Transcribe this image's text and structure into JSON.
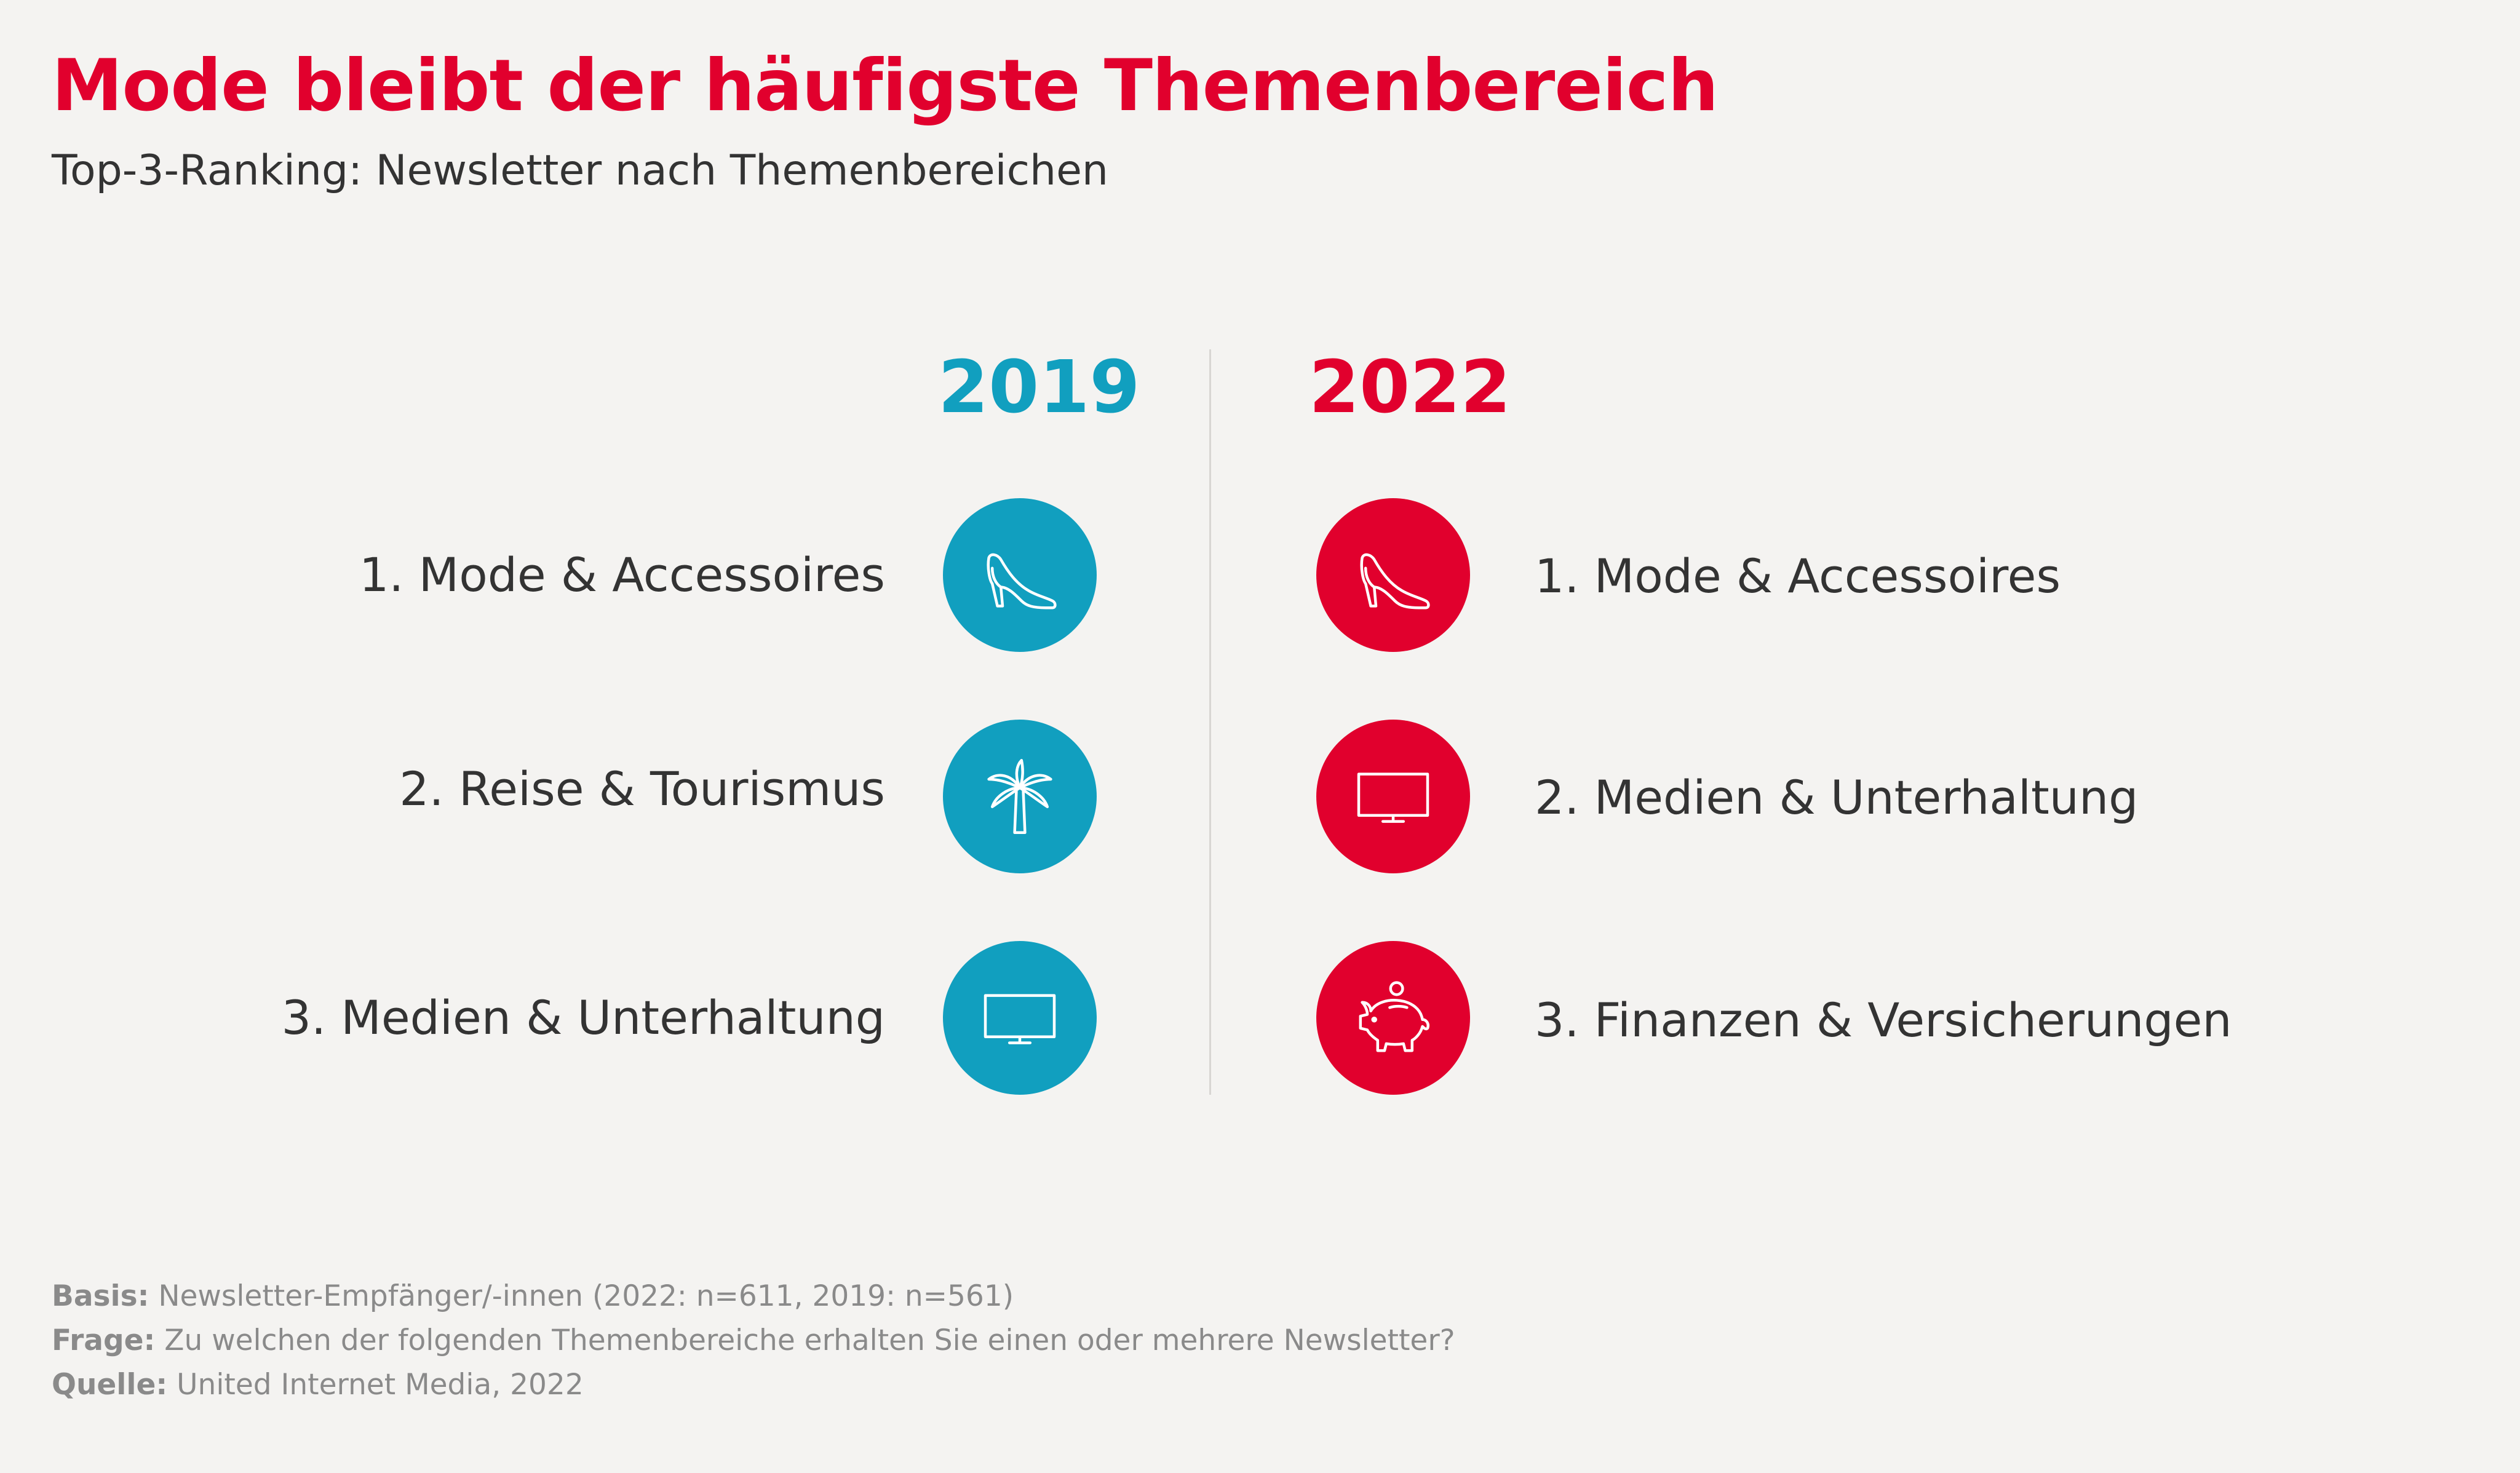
{
  "header": {
    "title": "Mode bleibt der häufigste Themenbereich",
    "subtitle": "Top-3-Ranking: Newsletter nach Themenbereichen"
  },
  "colors": {
    "year_2019": "#119fbf",
    "year_2022": "#e1002d",
    "title": "#e1002d",
    "background": "#f4f3f1"
  },
  "columns": [
    {
      "year": "2019",
      "items": [
        {
          "label": "1. Mode & Accessoires",
          "icon": "high-heel-shoe-icon"
        },
        {
          "label": "2. Reise & Tourismus",
          "icon": "palm-tree-icon"
        },
        {
          "label": "3. Medien & Unterhaltung",
          "icon": "tv-icon"
        }
      ]
    },
    {
      "year": "2022",
      "items": [
        {
          "label": "1. Mode & Accessoires",
          "icon": "high-heel-shoe-icon"
        },
        {
          "label": "2. Medien & Unterhaltung",
          "icon": "tv-icon"
        },
        {
          "label": "3. Finanzen & Versicherungen",
          "icon": "piggy-bank-icon"
        }
      ]
    }
  ],
  "footer": {
    "basis_label": "Basis:",
    "basis_text": "Newsletter-Empfänger/-innen (2022: n=611, 2019: n=561)",
    "frage_label": "Frage:",
    "frage_text": "Zu welchen der folgenden Themenbereiche erhalten Sie einen oder mehrere Newsletter?",
    "quelle_label": "Quelle:",
    "quelle_text": "United Internet Media, 2022"
  }
}
